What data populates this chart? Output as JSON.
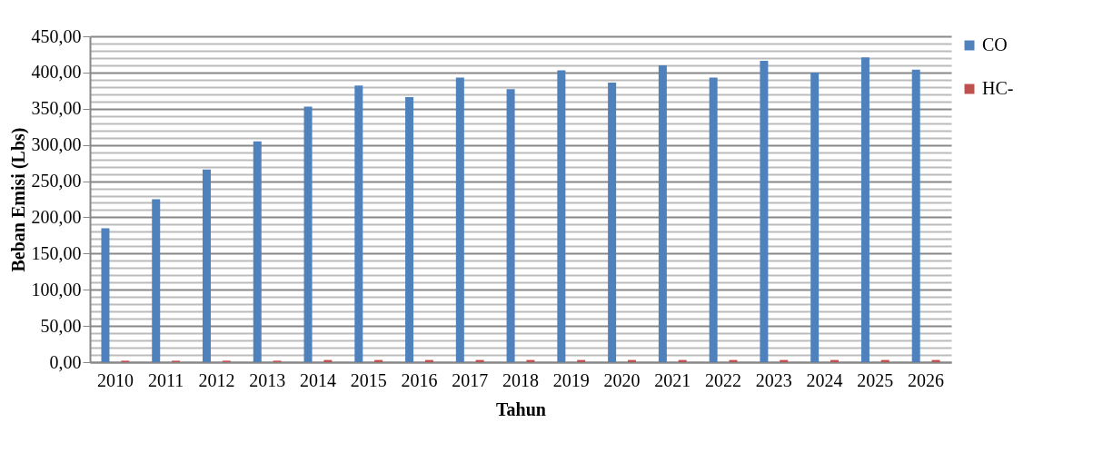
{
  "chart_data": {
    "type": "bar",
    "xlabel": "Tahun",
    "ylabel": "Beban Emisi (Lbs)",
    "categories": [
      "2010",
      "2011",
      "2012",
      "2013",
      "2014",
      "2015",
      "2016",
      "2017",
      "2018",
      "2019",
      "2020",
      "2021",
      "2022",
      "2023",
      "2024",
      "2025",
      "2026"
    ],
    "series": [
      {
        "name": "CO",
        "color": "#4f81bd",
        "values": [
          185,
          225,
          266,
          305,
          353,
          382,
          366,
          393,
          377,
          403,
          386,
          410,
          393,
          416,
          400,
          421,
          404
        ]
      },
      {
        "name": "HC-",
        "color": "#c0504d",
        "values": [
          2,
          2,
          2,
          2,
          3,
          3,
          3,
          3,
          3,
          3,
          3,
          3,
          3,
          3,
          3,
          3,
          3
        ]
      }
    ],
    "ylim": [
      0,
      450
    ],
    "yticks": [
      {
        "value": 0,
        "label": "0,00"
      },
      {
        "value": 10,
        "label": null
      },
      {
        "value": 20,
        "label": null
      },
      {
        "value": 30,
        "label": null
      },
      {
        "value": 40,
        "label": null
      },
      {
        "value": 50,
        "label": "50,00"
      },
      {
        "value": 60,
        "label": null
      },
      {
        "value": 70,
        "label": null
      },
      {
        "value": 80,
        "label": null
      },
      {
        "value": 90,
        "label": null
      },
      {
        "value": 100,
        "label": "100,00"
      },
      {
        "value": 110,
        "label": null
      },
      {
        "value": 120,
        "label": null
      },
      {
        "value": 130,
        "label": null
      },
      {
        "value": 140,
        "label": null
      },
      {
        "value": 150,
        "label": "150,00"
      },
      {
        "value": 160,
        "label": null
      },
      {
        "value": 170,
        "label": null
      },
      {
        "value": 180,
        "label": null
      },
      {
        "value": 190,
        "label": null
      },
      {
        "value": 200,
        "label": "200,00"
      },
      {
        "value": 210,
        "label": null
      },
      {
        "value": 220,
        "label": null
      },
      {
        "value": 230,
        "label": null
      },
      {
        "value": 240,
        "label": null
      },
      {
        "value": 250,
        "label": "250,00"
      },
      {
        "value": 260,
        "label": null
      },
      {
        "value": 270,
        "label": null
      },
      {
        "value": 280,
        "label": null
      },
      {
        "value": 290,
        "label": null
      },
      {
        "value": 300,
        "label": "300,00"
      },
      {
        "value": 310,
        "label": null
      },
      {
        "value": 320,
        "label": null
      },
      {
        "value": 330,
        "label": null
      },
      {
        "value": 340,
        "label": null
      },
      {
        "value": 350,
        "label": "350,00"
      },
      {
        "value": 360,
        "label": null
      },
      {
        "value": 370,
        "label": null
      },
      {
        "value": 380,
        "label": null
      },
      {
        "value": 390,
        "label": null
      },
      {
        "value": 400,
        "label": "400,00"
      },
      {
        "value": 410,
        "label": null
      },
      {
        "value": 420,
        "label": null
      },
      {
        "value": 430,
        "label": null
      },
      {
        "value": 440,
        "label": null
      },
      {
        "value": 450,
        "label": "450,00"
      }
    ],
    "grid": true,
    "legend": "right"
  }
}
